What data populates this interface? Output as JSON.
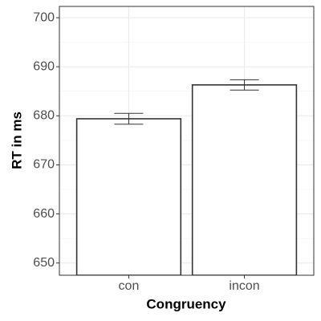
{
  "chart_data": {
    "type": "bar",
    "x_label": "Congruency",
    "y_label": "RT in ms",
    "categories": [
      "con",
      "incon"
    ],
    "values": [
      679.4,
      686.3
    ],
    "errors": [
      1.1,
      1.05
    ],
    "color": "#ffffff",
    "edge_color": "#333333",
    "ylim": [
      647.5,
      702.3
    ],
    "yticks": [
      650,
      660,
      670,
      680,
      690,
      700
    ],
    "grid": true
  }
}
